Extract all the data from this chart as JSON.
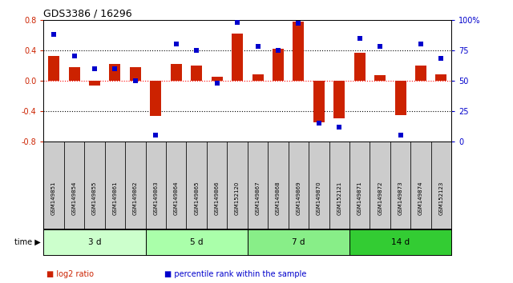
{
  "title": "GDS3386 / 16296",
  "samples": [
    "GSM149851",
    "GSM149854",
    "GSM149855",
    "GSM149861",
    "GSM149862",
    "GSM149863",
    "GSM149864",
    "GSM149865",
    "GSM149866",
    "GSM152120",
    "GSM149867",
    "GSM149868",
    "GSM149869",
    "GSM149870",
    "GSM152121",
    "GSM149871",
    "GSM149872",
    "GSM149873",
    "GSM149874",
    "GSM152123"
  ],
  "log2_ratio": [
    0.32,
    0.18,
    -0.06,
    0.22,
    0.18,
    -0.46,
    0.22,
    0.2,
    0.05,
    0.62,
    0.08,
    0.42,
    0.78,
    -0.55,
    -0.5,
    0.37,
    0.07,
    -0.45,
    0.2,
    0.08
  ],
  "percentile_rank": [
    88,
    70,
    60,
    60,
    50,
    5,
    80,
    75,
    48,
    98,
    78,
    75,
    97,
    15,
    12,
    85,
    78,
    5,
    80,
    68
  ],
  "groups": [
    {
      "label": "3 d",
      "start": 0,
      "end": 5,
      "color": "#ccffcc"
    },
    {
      "label": "5 d",
      "start": 5,
      "end": 10,
      "color": "#aaffaa"
    },
    {
      "label": "7 d",
      "start": 10,
      "end": 15,
      "color": "#88ee88"
    },
    {
      "label": "14 d",
      "start": 15,
      "end": 20,
      "color": "#33cc33"
    }
  ],
  "bar_color": "#cc2200",
  "dot_color": "#0000cc",
  "ylim_left": [
    -0.8,
    0.8
  ],
  "yticks_left": [
    -0.8,
    -0.4,
    0.0,
    0.4,
    0.8
  ],
  "yticks_right": [
    0,
    25,
    50,
    75,
    100
  ],
  "hline_values": [
    -0.4,
    0.0,
    0.4
  ],
  "hline_colors": [
    "black",
    "red",
    "black"
  ],
  "background_color": "#ffffff",
  "sample_box_color": "#cccccc",
  "time_label": "time",
  "legend_items": [
    {
      "label": "log2 ratio",
      "color": "#cc2200"
    },
    {
      "label": "percentile rank within the sample",
      "color": "#0000cc"
    }
  ]
}
